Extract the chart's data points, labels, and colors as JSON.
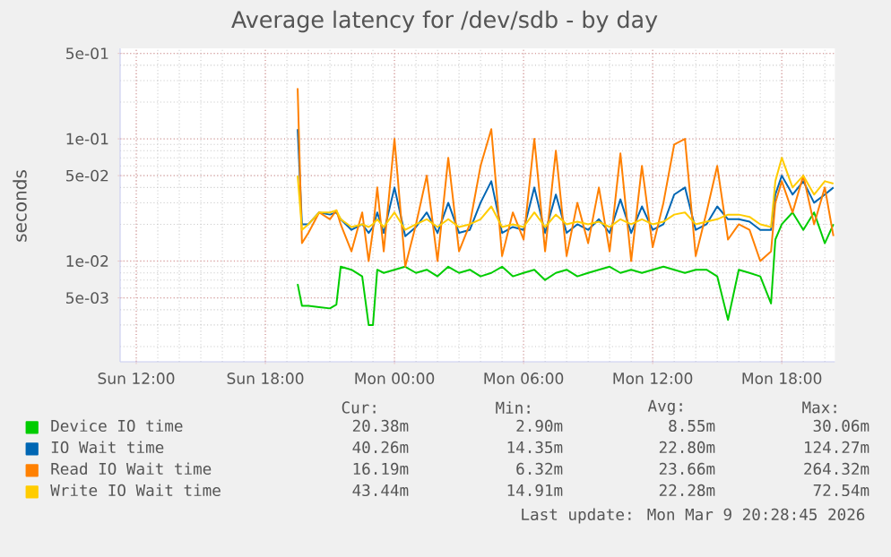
{
  "chart_data": {
    "type": "line",
    "title": "Average latency for /dev/sdb - by day",
    "ylabel": "seconds",
    "x": [
      "2026-03-08T19:30",
      "2026-03-08T19:42",
      "2026-03-08T20:00",
      "2026-03-08T20:30",
      "2026-03-08T21:00",
      "2026-03-08T21:18",
      "2026-03-08T21:30",
      "2026-03-08T22:00",
      "2026-03-08T22:30",
      "2026-03-08T22:48",
      "2026-03-08T23:00",
      "2026-03-08T23:12",
      "2026-03-08T23:30",
      "2026-03-09T00:00",
      "2026-03-09T00:30",
      "2026-03-09T01:00",
      "2026-03-09T01:30",
      "2026-03-09T02:00",
      "2026-03-09T02:30",
      "2026-03-09T03:00",
      "2026-03-09T03:30",
      "2026-03-09T04:00",
      "2026-03-09T04:30",
      "2026-03-09T05:00",
      "2026-03-09T05:30",
      "2026-03-09T06:00",
      "2026-03-09T06:30",
      "2026-03-09T07:00",
      "2026-03-09T07:30",
      "2026-03-09T08:00",
      "2026-03-09T08:30",
      "2026-03-09T09:00",
      "2026-03-09T09:30",
      "2026-03-09T10:00",
      "2026-03-09T10:30",
      "2026-03-09T11:00",
      "2026-03-09T11:30",
      "2026-03-09T12:00",
      "2026-03-09T12:30",
      "2026-03-09T13:00",
      "2026-03-09T13:30",
      "2026-03-09T14:00",
      "2026-03-09T14:30",
      "2026-03-09T15:00",
      "2026-03-09T15:30",
      "2026-03-09T16:00",
      "2026-03-09T16:30",
      "2026-03-09T17:00",
      "2026-03-09T17:30",
      "2026-03-09T17:42",
      "2026-03-09T18:00",
      "2026-03-09T18:30",
      "2026-03-09T19:00",
      "2026-03-09T19:30",
      "2026-03-09T20:00",
      "2026-03-09T20:24"
    ],
    "series": [
      {
        "name": "Device IO time",
        "color": "#00cc00",
        "values": [
          0.0065,
          0.0043,
          0.0043,
          0.0042,
          0.0041,
          0.0044,
          0.009,
          0.0085,
          0.0075,
          0.003,
          0.003,
          0.0085,
          0.008,
          0.0085,
          0.009,
          0.008,
          0.0085,
          0.0075,
          0.009,
          0.008,
          0.0085,
          0.0075,
          0.008,
          0.009,
          0.0075,
          0.008,
          0.0085,
          0.007,
          0.008,
          0.0085,
          0.0075,
          0.008,
          0.0085,
          0.009,
          0.008,
          0.0085,
          0.008,
          0.0085,
          0.009,
          0.0085,
          0.008,
          0.0085,
          0.0085,
          0.0075,
          0.0033,
          0.0085,
          0.008,
          0.0075,
          0.0045,
          0.015,
          0.02,
          0.025,
          0.018,
          0.025,
          0.014,
          0.02
        ]
      },
      {
        "name": "IO Wait time",
        "color": "#0066b3",
        "values": [
          0.12,
          0.02,
          0.02,
          0.025,
          0.024,
          0.025,
          0.022,
          0.018,
          0.02,
          0.017,
          0.019,
          0.025,
          0.017,
          0.04,
          0.016,
          0.019,
          0.025,
          0.017,
          0.03,
          0.017,
          0.018,
          0.03,
          0.045,
          0.017,
          0.019,
          0.018,
          0.04,
          0.017,
          0.035,
          0.017,
          0.02,
          0.018,
          0.022,
          0.017,
          0.032,
          0.017,
          0.028,
          0.018,
          0.02,
          0.035,
          0.04,
          0.018,
          0.02,
          0.028,
          0.022,
          0.022,
          0.021,
          0.018,
          0.018,
          0.035,
          0.05,
          0.035,
          0.045,
          0.03,
          0.035,
          0.04
        ]
      },
      {
        "name": "Read IO Wait time",
        "color": "#ff8000",
        "values": [
          0.26,
          0.014,
          0.017,
          0.025,
          0.022,
          0.026,
          0.02,
          0.012,
          0.025,
          0.01,
          0.018,
          0.04,
          0.012,
          0.1,
          0.009,
          0.02,
          0.05,
          0.01,
          0.07,
          0.012,
          0.02,
          0.06,
          0.12,
          0.011,
          0.025,
          0.015,
          0.1,
          0.012,
          0.08,
          0.011,
          0.03,
          0.014,
          0.04,
          0.012,
          0.076,
          0.01,
          0.06,
          0.013,
          0.03,
          0.09,
          0.1,
          0.011,
          0.025,
          0.06,
          0.015,
          0.02,
          0.018,
          0.01,
          0.012,
          0.03,
          0.045,
          0.025,
          0.05,
          0.02,
          0.04,
          0.016
        ]
      },
      {
        "name": "Write IO Wait time",
        "color": "#ffcc00",
        "values": [
          0.05,
          0.018,
          0.02,
          0.025,
          0.025,
          0.026,
          0.022,
          0.019,
          0.02,
          0.019,
          0.02,
          0.022,
          0.019,
          0.025,
          0.018,
          0.02,
          0.022,
          0.019,
          0.022,
          0.019,
          0.02,
          0.022,
          0.028,
          0.019,
          0.02,
          0.019,
          0.025,
          0.019,
          0.024,
          0.02,
          0.021,
          0.02,
          0.021,
          0.019,
          0.022,
          0.02,
          0.022,
          0.02,
          0.021,
          0.024,
          0.025,
          0.02,
          0.021,
          0.022,
          0.024,
          0.024,
          0.023,
          0.02,
          0.019,
          0.045,
          0.07,
          0.04,
          0.05,
          0.035,
          0.045,
          0.043
        ]
      }
    ],
    "xlim": [
      "2026-03-08T11:15",
      "2026-03-09T20:28"
    ],
    "xticks": [
      {
        "value": "2026-03-08T12:00",
        "label": "Sun 12:00"
      },
      {
        "value": "2026-03-08T18:00",
        "label": "Sun 18:00"
      },
      {
        "value": "2026-03-09T00:00",
        "label": "Mon 00:00"
      },
      {
        "value": "2026-03-09T06:00",
        "label": "Mon 06:00"
      },
      {
        "value": "2026-03-09T12:00",
        "label": "Mon 12:00"
      },
      {
        "value": "2026-03-09T18:00",
        "label": "Mon 18:00"
      }
    ],
    "ylim": [
      0.0015,
      0.55
    ],
    "yticks": [
      {
        "value": 0.005,
        "label": "5e-03"
      },
      {
        "value": 0.01,
        "label": "1e-02"
      },
      {
        "value": 0.05,
        "label": "5e-02"
      },
      {
        "value": 0.1,
        "label": "1e-01"
      },
      {
        "value": 0.5,
        "label": "5e-01"
      }
    ],
    "log": true,
    "grid": true,
    "legend": "bottom",
    "annotations": [
      "Cur:",
      "Min:",
      "Avg:",
      "Max:",
      "20.38m",
      "2.90m",
      "8.55m",
      "30.06m",
      "40.26m",
      "14.35m",
      "22.80m",
      "124.27m",
      "16.19m",
      "6.32m",
      "23.66m",
      "264.32m",
      "43.44m",
      "14.91m",
      "22.28m",
      "72.54m",
      "Last update: Mon Mar  9 20:28:45 2026"
    ]
  }
}
